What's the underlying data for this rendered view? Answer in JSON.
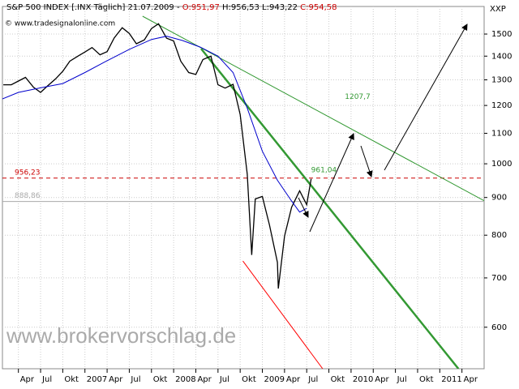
{
  "chart_data": {
    "type": "line",
    "header": [
      {
        "text": "S&P 500 INDEX [.INX Täglich] 21.07.2009 - ",
        "color": "#000000"
      },
      {
        "text": "O:951,97",
        "color": "#cc0000"
      },
      {
        "text": " H:956,53 L:943,22 ",
        "color": "#000000"
      },
      {
        "text": "C:954,58",
        "color": "#cc0000"
      }
    ],
    "source": "© www.tradesignalonline.com",
    "axis_label": "XXP",
    "watermark": "www.brokervorschlag.de",
    "log_y": true,
    "grid": true,
    "xlim": [
      2006.07,
      2011.5
    ],
    "ylim": [
      527,
      1635
    ],
    "yticks": [
      600,
      700,
      800,
      900,
      1000,
      1100,
      1200,
      1300,
      1400,
      1500
    ],
    "xticks": [
      {
        "value": 2006.25,
        "label": "Apr"
      },
      {
        "value": 2006.5,
        "label": "Jul"
      },
      {
        "value": 2006.75,
        "label": "Okt"
      },
      {
        "value": 2007.0,
        "label": "2007"
      },
      {
        "value": 2007.25,
        "label": "Apr"
      },
      {
        "value": 2007.5,
        "label": "Jul"
      },
      {
        "value": 2007.75,
        "label": "Okt"
      },
      {
        "value": 2008.0,
        "label": "2008"
      },
      {
        "value": 2008.25,
        "label": "Apr"
      },
      {
        "value": 2008.5,
        "label": "Jul"
      },
      {
        "value": 2008.75,
        "label": "Okt"
      },
      {
        "value": 2009.0,
        "label": "2009"
      },
      {
        "value": 2009.25,
        "label": "Apr"
      },
      {
        "value": 2009.5,
        "label": "Jul"
      },
      {
        "value": 2009.75,
        "label": "Okt"
      },
      {
        "value": 2010.0,
        "label": "2010"
      },
      {
        "value": 2010.25,
        "label": "Apr"
      },
      {
        "value": 2010.5,
        "label": "Jul"
      },
      {
        "value": 2010.75,
        "label": "Okt"
      },
      {
        "value": 2011.0,
        "label": "2011"
      },
      {
        "value": 2011.25,
        "label": "Apr"
      }
    ],
    "series": [
      {
        "color": "#000000",
        "x": [
          2006.08,
          2006.17,
          2006.25,
          2006.33,
          2006.42,
          2006.5,
          2006.58,
          2006.67,
          2006.75,
          2006.83,
          2006.92,
          2007.0,
          2007.08,
          2007.17,
          2007.25,
          2007.33,
          2007.42,
          2007.5,
          2007.58,
          2007.67,
          2007.75,
          2007.83,
          2007.92,
          2008.0,
          2008.08,
          2008.17,
          2008.25,
          2008.33,
          2008.42,
          2008.5,
          2008.58,
          2008.67,
          2008.75,
          2008.83,
          2008.88,
          2008.92,
          2009.0,
          2009.08,
          2009.17,
          2009.18,
          2009.25,
          2009.33,
          2009.42,
          2009.5,
          2009.55
        ],
        "values": [
          1280,
          1280,
          1295,
          1310,
          1270,
          1250,
          1276,
          1304,
          1335,
          1378,
          1400,
          1418,
          1438,
          1406,
          1420,
          1482,
          1530,
          1503,
          1455,
          1473,
          1526,
          1549,
          1481,
          1468,
          1378,
          1330,
          1322,
          1385,
          1400,
          1280,
          1267,
          1282,
          1166,
          968,
          752,
          896,
          903,
          826,
          735,
          677,
          798,
          873,
          919,
          880,
          954
        ]
      },
      {
        "color": "#0000cc",
        "x": [
          2006.07,
          2006.25,
          2006.5,
          2006.75,
          2007.0,
          2007.25,
          2007.5,
          2007.75,
          2007.92,
          2008.1,
          2008.3,
          2008.5,
          2008.67,
          2008.83,
          2009.0,
          2009.17,
          2009.33,
          2009.42,
          2009.5
        ],
        "values": [
          1225,
          1250,
          1268,
          1285,
          1330,
          1380,
          1430,
          1475,
          1490,
          1470,
          1440,
          1400,
          1330,
          1190,
          1040,
          950,
          890,
          860,
          870
        ]
      }
    ],
    "trendlines": [
      {
        "color": "#339933",
        "width": 1,
        "x": [
          2007.65,
          2011.5
        ],
        "values": [
          1586,
          891
        ]
      },
      {
        "color": "#339933",
        "width": 2.5,
        "x": [
          2008.31,
          2011.21
        ],
        "values": [
          1433,
          527
        ]
      },
      {
        "color": "#ff0000",
        "width": 1,
        "x": [
          2008.78,
          2009.68
        ],
        "values": [
          738,
          527
        ]
      }
    ],
    "hlines": [
      {
        "value": 956.23,
        "label": "956,23",
        "color": "#cc0000",
        "dash": "5,4"
      },
      {
        "value": 888.86,
        "label": "888,86",
        "color": "#aaaaaa",
        "dash": "none"
      }
    ],
    "annotations": [
      {
        "value": 1207.7,
        "label": "1207,7",
        "x": 2009.93,
        "color": "#339933"
      },
      {
        "value": 961.04,
        "label": "961,04",
        "x": 2009.55,
        "color": "#339933"
      }
    ]
  }
}
